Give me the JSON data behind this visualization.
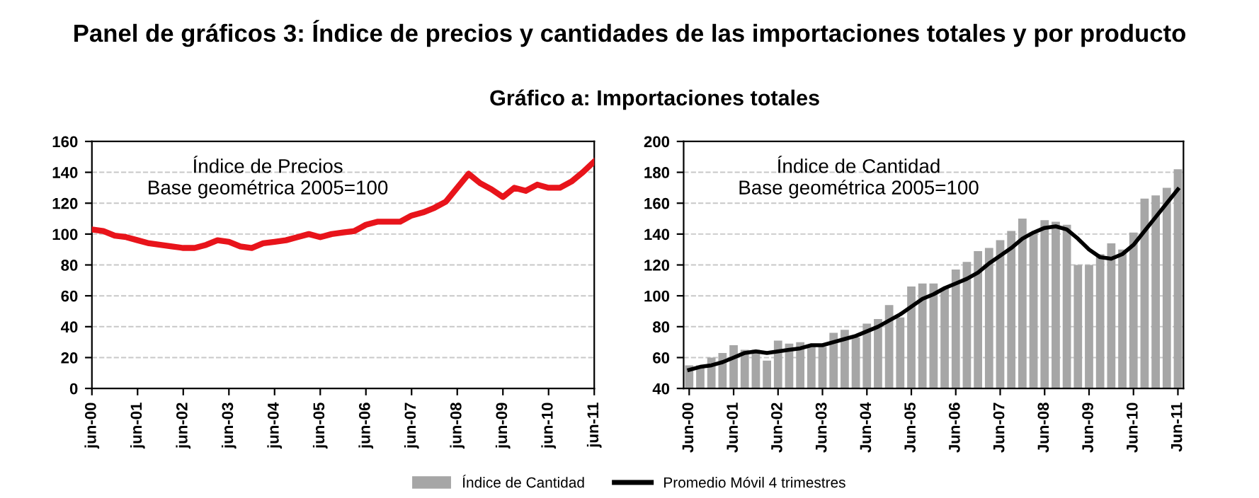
{
  "chart_data": [
    {
      "type": "line",
      "title": "Panel de gráficos 3: Índice de precios y cantidades de las importaciones totales y por producto",
      "subtitle": "Gráfico a: Importaciones totales",
      "annotations": [
        "Índice de Precios\nBase geométrica 2005=100"
      ],
      "categories": [
        "jun-00",
        null,
        null,
        null,
        "jun-01",
        null,
        null,
        null,
        "jun-02",
        null,
        null,
        null,
        "jun-03",
        null,
        null,
        null,
        "jun-04",
        null,
        null,
        null,
        "jun-05",
        null,
        null,
        null,
        "jun-06",
        null,
        null,
        null,
        "jun-07",
        null,
        null,
        null,
        "jun-08",
        null,
        null,
        null,
        "jun-09",
        null,
        null,
        null,
        "jun-10",
        null,
        null,
        null,
        "jun-11"
      ],
      "series": [
        {
          "color": "#e8141b",
          "values": [
            103,
            102,
            99,
            98,
            96,
            94,
            93,
            92,
            91,
            91,
            93,
            96,
            95,
            92,
            91,
            94,
            95,
            96,
            98,
            100,
            98,
            100,
            101,
            102,
            106,
            108,
            108,
            108,
            112,
            114,
            117,
            121,
            130,
            139,
            133,
            129,
            124,
            130,
            128,
            132,
            130,
            130,
            134,
            140,
            147
          ]
        }
      ],
      "ylim": [
        0,
        160
      ],
      "yticks": [
        0,
        20,
        40,
        60,
        80,
        100,
        120,
        140,
        160
      ],
      "grid": "y",
      "line_style": "solid"
    },
    {
      "type": "bar",
      "annotations": [
        "Índice de Cantidad\nBase geométrica 2005=100"
      ],
      "categories": [
        "Jun-00",
        null,
        null,
        null,
        "Jun-01",
        null,
        null,
        null,
        "Jun-02",
        null,
        null,
        null,
        "Jun-03",
        null,
        null,
        null,
        "Jun-04",
        null,
        null,
        null,
        "Jun-05",
        null,
        null,
        null,
        "Jun-06",
        null,
        null,
        null,
        "Jun-07",
        null,
        null,
        null,
        "Jun-08",
        null,
        null,
        null,
        "Jun-09",
        null,
        null,
        null,
        "Jun-10",
        null,
        null,
        null,
        "Jun-11"
      ],
      "series": [
        {
          "name": "Índice de Cantidad",
          "color": "#a6a6a6",
          "values": [
            55,
            55,
            60,
            63,
            68,
            65,
            65,
            58,
            71,
            69,
            70,
            68,
            67,
            76,
            78,
            73,
            82,
            85,
            94,
            86,
            106,
            108,
            108,
            105,
            117,
            122,
            129,
            131,
            136,
            142,
            150,
            141,
            149,
            148,
            146,
            120,
            120,
            127,
            134,
            130,
            141,
            163,
            165,
            170,
            182
          ]
        },
        {
          "name": "Promedio Móvil 4 trimestres",
          "type": "line",
          "color": "#000000",
          "values": [
            52,
            54,
            55,
            57,
            60,
            63,
            64,
            63,
            64,
            65,
            66,
            68,
            68,
            70,
            72,
            74,
            77,
            80,
            84,
            88,
            93,
            98,
            101,
            105,
            108,
            111,
            115,
            121,
            126,
            131,
            137,
            141,
            144,
            145,
            143,
            137,
            130,
            125,
            124,
            127,
            133,
            142,
            151,
            160,
            169
          ]
        }
      ],
      "ylim": [
        40,
        200
      ],
      "yticks": [
        40,
        60,
        80,
        100,
        120,
        140,
        160,
        180,
        200
      ],
      "grid": "y",
      "legend": "bottom"
    }
  ]
}
